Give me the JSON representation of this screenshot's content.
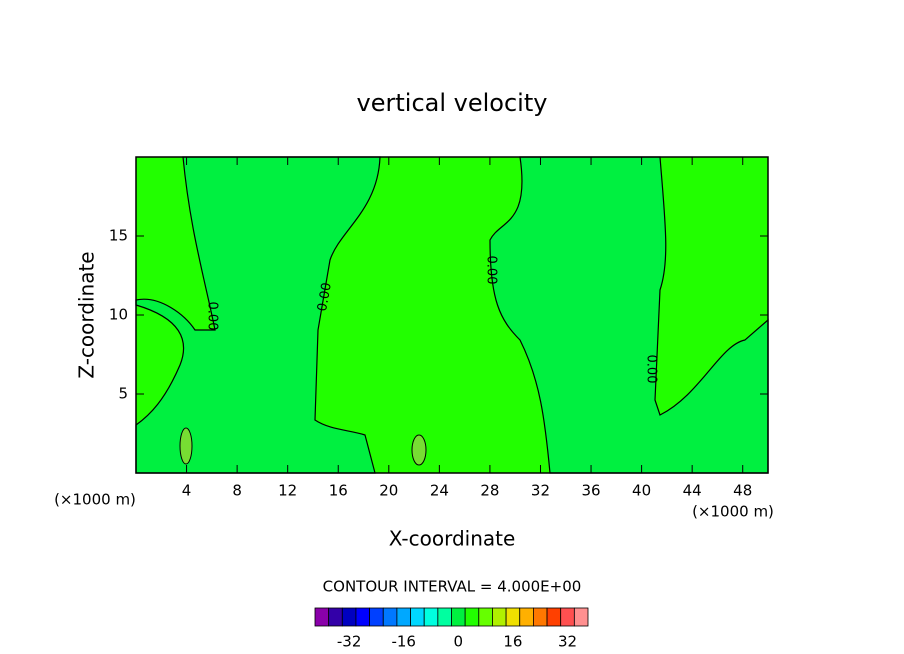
{
  "chart_data": {
    "type": "contour",
    "title": "vertical velocity",
    "x_label": "X-coordinate",
    "y_label": "Z-coordinate",
    "x_unit": "(×1000 m)",
    "y_unit": "(×1000 m)",
    "xlim": [
      0,
      50
    ],
    "xticks": [
      4,
      8,
      12,
      16,
      20,
      24,
      28,
      32,
      36,
      40,
      44,
      48
    ],
    "ylim": [
      0,
      20
    ],
    "yticks": [
      5,
      10,
      15
    ],
    "contour_labels": [
      "0.00",
      "0.00",
      "0.00",
      "0.00"
    ],
    "contour_interval": "CONTOUR INTERVAL = 4.000E+00",
    "colorbar": {
      "lim": [
        -42,
        38
      ],
      "ticks": [
        -32,
        -16,
        0,
        16,
        32
      ],
      "colors": [
        "#8a00aa",
        "#3300a8",
        "#0000c0",
        "#0000ff",
        "#0040ff",
        "#0078ff",
        "#00a8ff",
        "#00d8ff",
        "#00ffe0",
        "#00ffa0",
        "#00f040",
        "#22ff00",
        "#66ff00",
        "#b0f000",
        "#f0e000",
        "#ffb000",
        "#ff7800",
        "#ff4000",
        "#ff5050",
        "#ff9090"
      ]
    }
  }
}
